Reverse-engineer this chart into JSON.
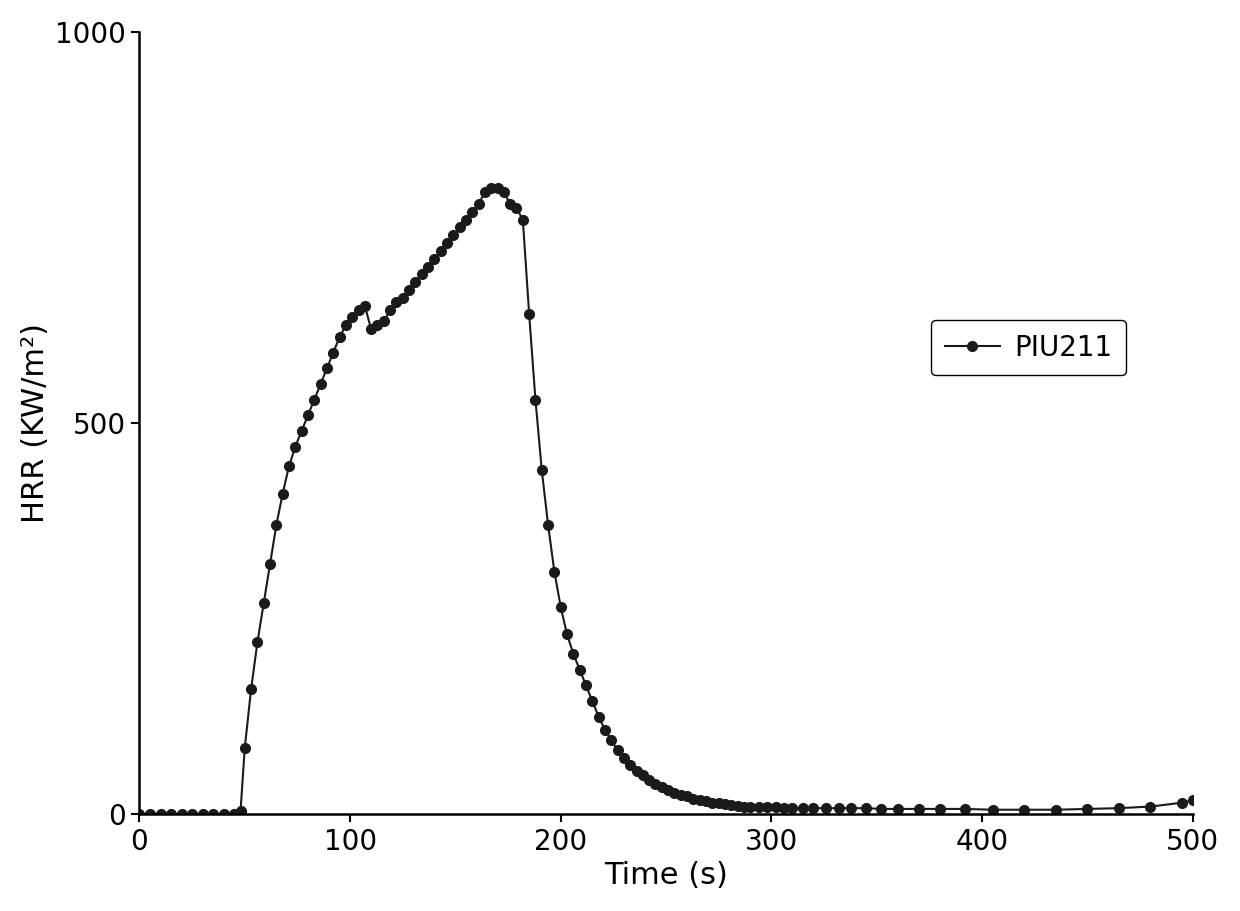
{
  "title": "",
  "xlabel": "Time (s)",
  "ylabel": "HRR (KW/m²)",
  "xlim": [
    0,
    500
  ],
  "ylim": [
    0,
    1000
  ],
  "xticks": [
    0,
    100,
    200,
    300,
    400,
    500
  ],
  "yticks": [
    0,
    500,
    1000
  ],
  "line_color": "#1a1a1a",
  "marker": "o",
  "marker_size": 7,
  "line_width": 1.5,
  "legend_label": "PIU211",
  "background_color": "#ffffff",
  "time": [
    0,
    5,
    10,
    15,
    20,
    25,
    30,
    35,
    40,
    45,
    48,
    50,
    53,
    56,
    59,
    62,
    65,
    68,
    71,
    74,
    77,
    80,
    83,
    86,
    89,
    92,
    95,
    98,
    101,
    104,
    107,
    110,
    113,
    116,
    119,
    122,
    125,
    128,
    131,
    134,
    137,
    140,
    143,
    146,
    149,
    152,
    155,
    158,
    161,
    164,
    167,
    170,
    173,
    176,
    179,
    182,
    185,
    188,
    191,
    194,
    197,
    200,
    203,
    206,
    209,
    212,
    215,
    218,
    221,
    224,
    227,
    230,
    233,
    236,
    239,
    242,
    245,
    248,
    251,
    254,
    257,
    260,
    263,
    266,
    269,
    272,
    275,
    278,
    281,
    284,
    287,
    290,
    294,
    298,
    302,
    306,
    310,
    315,
    320,
    326,
    332,
    338,
    345,
    352,
    360,
    370,
    380,
    392,
    405,
    420,
    435,
    450,
    465,
    480,
    495,
    500
  ],
  "hrr": [
    0,
    0,
    0,
    0,
    0,
    0,
    0,
    0,
    0,
    0,
    5,
    85,
    160,
    220,
    270,
    320,
    370,
    410,
    445,
    470,
    490,
    510,
    530,
    550,
    570,
    590,
    610,
    625,
    635,
    645,
    650,
    620,
    625,
    630,
    645,
    655,
    660,
    670,
    680,
    690,
    700,
    710,
    720,
    730,
    740,
    750,
    760,
    770,
    780,
    795,
    800,
    800,
    795,
    780,
    775,
    760,
    640,
    530,
    440,
    370,
    310,
    265,
    230,
    205,
    185,
    165,
    145,
    125,
    108,
    95,
    82,
    72,
    63,
    56,
    50,
    44,
    39,
    35,
    31,
    28,
    25,
    23,
    20,
    18,
    17,
    15,
    14,
    13,
    12,
    11,
    10,
    10,
    9,
    9,
    9,
    8,
    8,
    8,
    8,
    8,
    8,
    8,
    8,
    7,
    7,
    7,
    7,
    7,
    6,
    6,
    6,
    7,
    8,
    10,
    15,
    18
  ]
}
